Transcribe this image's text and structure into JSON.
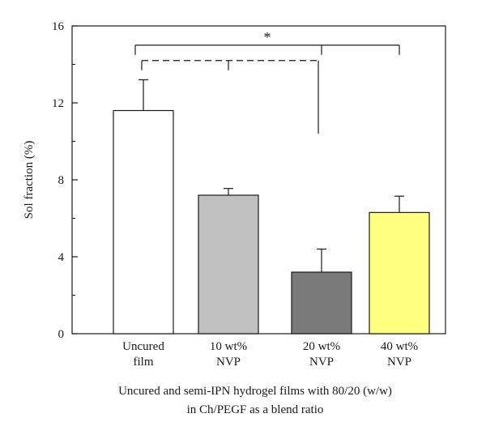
{
  "chart_data": {
    "type": "bar",
    "title": "",
    "xlabel_lines": [
      "Uncured and semi-IPN hydrogel films with 80/20 (w/w)",
      "in Ch/PEGF as a blend ratio"
    ],
    "ylabel": "Sol fraction (%)",
    "ylim": [
      0,
      16
    ],
    "yticks": [
      "0",
      "4",
      "8",
      "12",
      "16"
    ],
    "grid": false,
    "categories": [
      [
        "Uncured",
        "film"
      ],
      [
        "10 wt%",
        "NVP"
      ],
      [
        "20 wt%",
        "NVP"
      ],
      [
        "40 wt%",
        "NVP"
      ]
    ],
    "values": [
      11.6,
      7.2,
      3.2,
      6.3
    ],
    "errors": [
      1.6,
      0.35,
      1.2,
      0.85
    ],
    "bar_colors": [
      "#ffffff",
      "#c0c0c0",
      "#7a7a7a",
      "#ffff80"
    ],
    "significance": {
      "symbol": "*",
      "solid_bracket": {
        "from": 0,
        "to": [
          2,
          3
        ],
        "level": 15.0
      },
      "dashed_bracket": {
        "from": 0,
        "to": [
          1,
          2
        ],
        "level": 14.2,
        "drop_to": 10.4
      }
    }
  }
}
